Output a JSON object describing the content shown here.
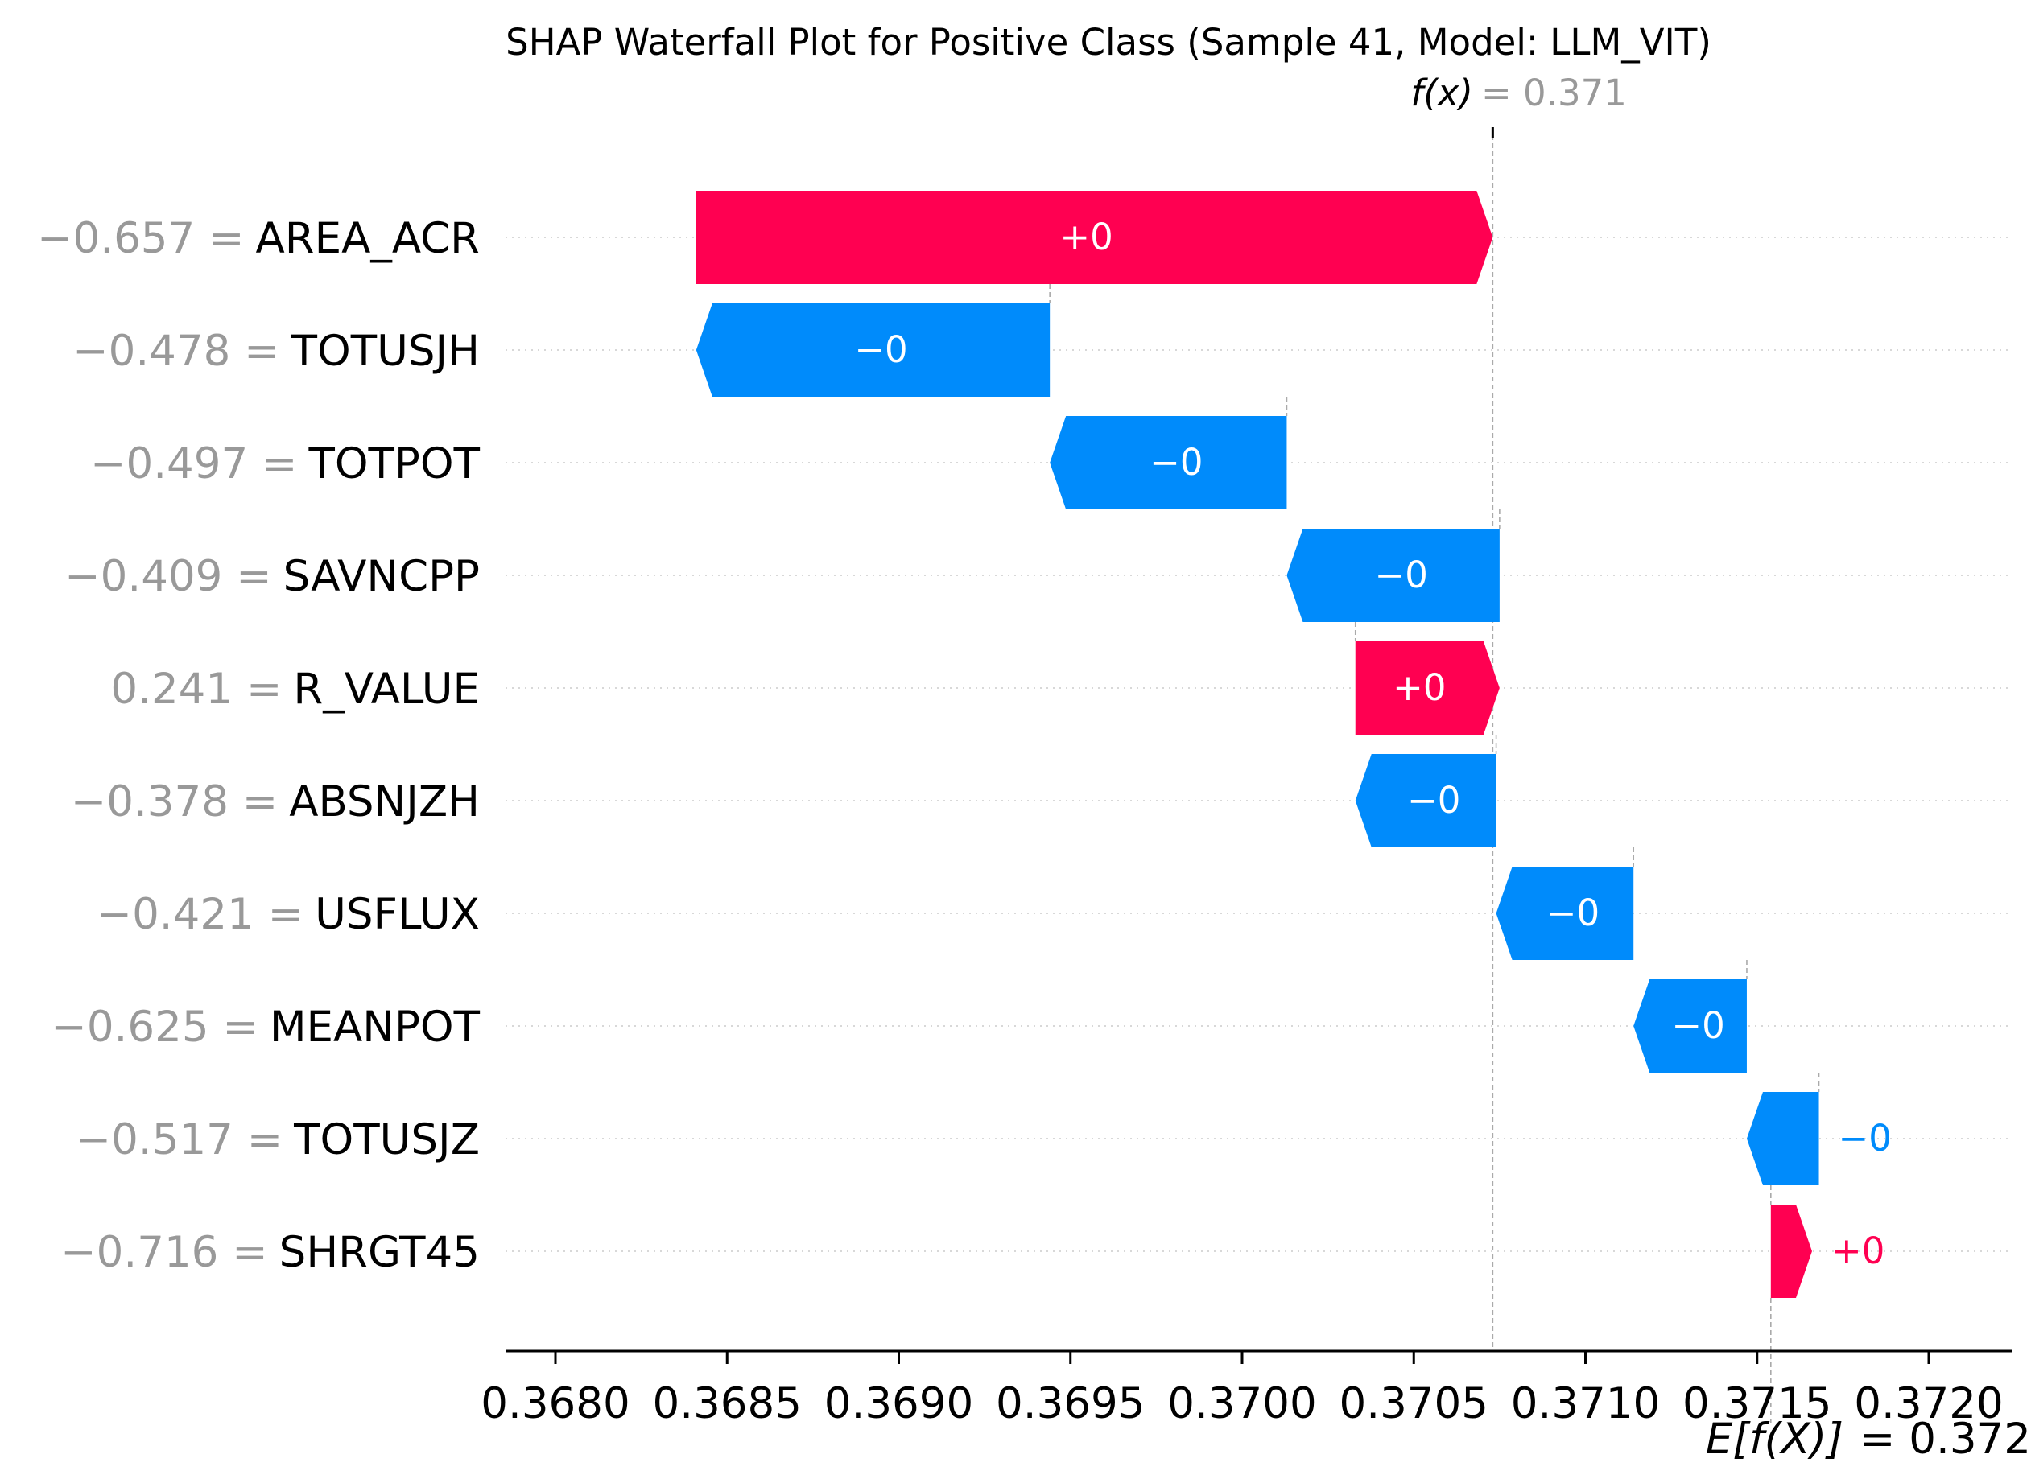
{
  "chart_data": {
    "type": "bar",
    "title": "SHAP Waterfall Plot for Positive Class (Sample 41, Model: LLM_VIT)",
    "fx": {
      "label": "f(x)",
      "value_text": "= 0.371",
      "value": 0.37073
    },
    "base": {
      "label": "E[f(X)]",
      "value_text": "= 0.372",
      "value": 0.37154
    },
    "xlim": [
      0.36795,
      0.37223
    ],
    "xticks": [
      0.368,
      0.3685,
      0.369,
      0.3695,
      0.37,
      0.3705,
      0.371,
      0.3715,
      0.372
    ],
    "xtick_labels": [
      "0.3680",
      "0.3685",
      "0.3690",
      "0.3695",
      "0.3700",
      "0.3705",
      "0.3710",
      "0.3715",
      "0.3720"
    ],
    "features": [
      {
        "value_text": "−0.657 =",
        "name": "AREA_ACR",
        "start": 0.36841,
        "end": 0.37073,
        "label": "+0",
        "sign": "pos"
      },
      {
        "value_text": "−0.478 =",
        "name": "TOTUSJH",
        "start": 0.36944,
        "end": 0.36841,
        "label": "−0",
        "sign": "neg"
      },
      {
        "value_text": "−0.497 =",
        "name": "TOTPOT",
        "start": 0.37013,
        "end": 0.36944,
        "label": "−0",
        "sign": "neg"
      },
      {
        "value_text": "−0.409 =",
        "name": "SAVNCPP",
        "start": 0.37075,
        "end": 0.37013,
        "label": "−0",
        "sign": "neg"
      },
      {
        "value_text": "0.241 =",
        "name": "R_VALUE",
        "start": 0.37033,
        "end": 0.37075,
        "label": "+0",
        "sign": "pos"
      },
      {
        "value_text": "−0.378 =",
        "name": "ABSNJZH",
        "start": 0.37074,
        "end": 0.37033,
        "label": "−0",
        "sign": "neg"
      },
      {
        "value_text": "−0.421 =",
        "name": "USFLUX",
        "start": 0.37114,
        "end": 0.37074,
        "label": "−0",
        "sign": "neg"
      },
      {
        "value_text": "−0.625 =",
        "name": "MEANPOT",
        "start": 0.37147,
        "end": 0.37114,
        "label": "−0",
        "sign": "neg"
      },
      {
        "value_text": "−0.517 =",
        "name": "TOTUSJZ",
        "start": 0.37168,
        "end": 0.37147,
        "label": "−0",
        "sign": "neg"
      },
      {
        "value_text": "−0.716 =",
        "name": "SHRGT45",
        "start": 0.37154,
        "end": 0.37166,
        "label": "+0",
        "sign": "pos"
      }
    ],
    "colors": {
      "positive": "#ff0051",
      "negative": "#008bfb",
      "axis": "#000000",
      "muted": "#999999"
    }
  }
}
